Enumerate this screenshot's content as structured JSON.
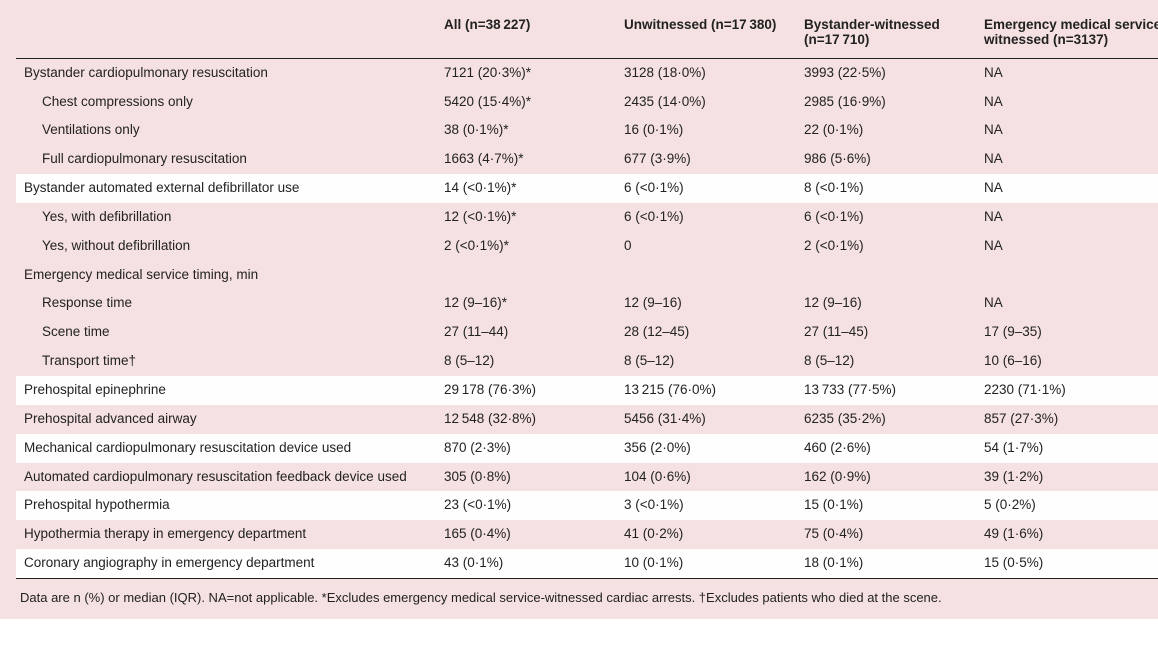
{
  "table": {
    "background_color": "#f5e1e1",
    "alt_row_color": "#fffefe",
    "text_color": "#222222",
    "font_size": 13.5,
    "footnote_font_size": 13,
    "columns": [
      {
        "key": "label",
        "header": ""
      },
      {
        "key": "all",
        "header": "All (n=38 227)"
      },
      {
        "key": "unw",
        "header": "Unwitnessed (n=17 380)"
      },
      {
        "key": "byw",
        "header": "Bystander-witnessed (n=17 710)"
      },
      {
        "key": "ems",
        "header": "Emergency medical service-witnessed (n=3137)"
      }
    ],
    "rows": [
      {
        "label": "Bystander cardiopulmonary resuscitation",
        "indent": 0,
        "alt": false,
        "all": "7121 (20·3%)*",
        "unw": "3128 (18·0%)",
        "byw": "3993 (22·5%)",
        "ems": "NA"
      },
      {
        "label": "Chest compressions only",
        "indent": 1,
        "alt": false,
        "all": "5420 (15·4%)*",
        "unw": "2435 (14·0%)",
        "byw": "2985 (16·9%)",
        "ems": "NA"
      },
      {
        "label": "Ventilations only",
        "indent": 1,
        "alt": false,
        "all": "38 (0·1%)*",
        "unw": "16 (0·1%)",
        "byw": "22 (0·1%)",
        "ems": "NA"
      },
      {
        "label": "Full cardiopulmonary resuscitation",
        "indent": 1,
        "alt": false,
        "all": "1663 (4·7%)*",
        "unw": "677 (3·9%)",
        "byw": "986 (5·6%)",
        "ems": "NA"
      },
      {
        "label": "Bystander automated external defibrillator use",
        "indent": 0,
        "alt": true,
        "all": "14 (<0·1%)*",
        "unw": "6 (<0·1%)",
        "byw": "8 (<0·1%)",
        "ems": "NA"
      },
      {
        "label": "Yes, with defibrillation",
        "indent": 1,
        "alt": false,
        "all": "12 (<0·1%)*",
        "unw": "6 (<0·1%)",
        "byw": "6 (<0·1%)",
        "ems": "NA"
      },
      {
        "label": "Yes, without defibrillation",
        "indent": 1,
        "alt": false,
        "all": "2 (<0·1%)*",
        "unw": "0",
        "byw": "2 (<0·1%)",
        "ems": "NA"
      },
      {
        "label": "Emergency medical service timing, min",
        "indent": 0,
        "alt": false,
        "all": "",
        "unw": "",
        "byw": "",
        "ems": ""
      },
      {
        "label": "Response time",
        "indent": 1,
        "alt": false,
        "all": "12 (9–16)*",
        "unw": "12 (9–16)",
        "byw": "12 (9–16)",
        "ems": "NA"
      },
      {
        "label": "Scene time",
        "indent": 1,
        "alt": false,
        "all": "27 (11–44)",
        "unw": "28 (12–45)",
        "byw": "27 (11–45)",
        "ems": "17 (9–35)"
      },
      {
        "label": "Transport time†",
        "indent": 1,
        "alt": false,
        "all": "8 (5–12)",
        "unw": "8 (5–12)",
        "byw": "8 (5–12)",
        "ems": "10 (6–16)"
      },
      {
        "label": "Prehospital epinephrine",
        "indent": 0,
        "alt": true,
        "all": "29 178 (76·3%)",
        "unw": "13 215 (76·0%)",
        "byw": "13 733 (77·5%)",
        "ems": "2230 (71·1%)"
      },
      {
        "label": "Prehospital advanced airway",
        "indent": 0,
        "alt": false,
        "all": "12 548 (32·8%)",
        "unw": "5456 (31·4%)",
        "byw": "6235 (35·2%)",
        "ems": "857 (27·3%)"
      },
      {
        "label": "Mechanical cardiopulmonary resuscitation device used",
        "indent": 0,
        "alt": true,
        "all": "870 (2·3%)",
        "unw": "356 (2·0%)",
        "byw": "460 (2·6%)",
        "ems": "54 (1·7%)"
      },
      {
        "label": "Automated cardiopulmonary resuscitation feedback device used",
        "indent": 0,
        "alt": false,
        "all": "305 (0·8%)",
        "unw": "104 (0·6%)",
        "byw": "162 (0·9%)",
        "ems": "39 (1·2%)"
      },
      {
        "label": "Prehospital hypothermia",
        "indent": 0,
        "alt": true,
        "all": "23 (<0·1%)",
        "unw": "3 (<0·1%)",
        "byw": "15 (0·1%)",
        "ems": "5 (0·2%)"
      },
      {
        "label": "Hypothermia therapy in emergency department",
        "indent": 0,
        "alt": false,
        "all": "165 (0·4%)",
        "unw": "41 (0·2%)",
        "byw": "75 (0·4%)",
        "ems": "49 (1·6%)"
      },
      {
        "label": "Coronary angiography in emergency department",
        "indent": 0,
        "alt": true,
        "all": "43 (0·1%)",
        "unw": "10 (0·1%)",
        "byw": "18 (0·1%)",
        "ems": "15 (0·5%)"
      }
    ],
    "footnote": "Data are n (%) or median (IQR). NA=not applicable. *Excludes emergency medical service-witnessed cardiac arrests. †Excludes patients who died at the scene."
  }
}
